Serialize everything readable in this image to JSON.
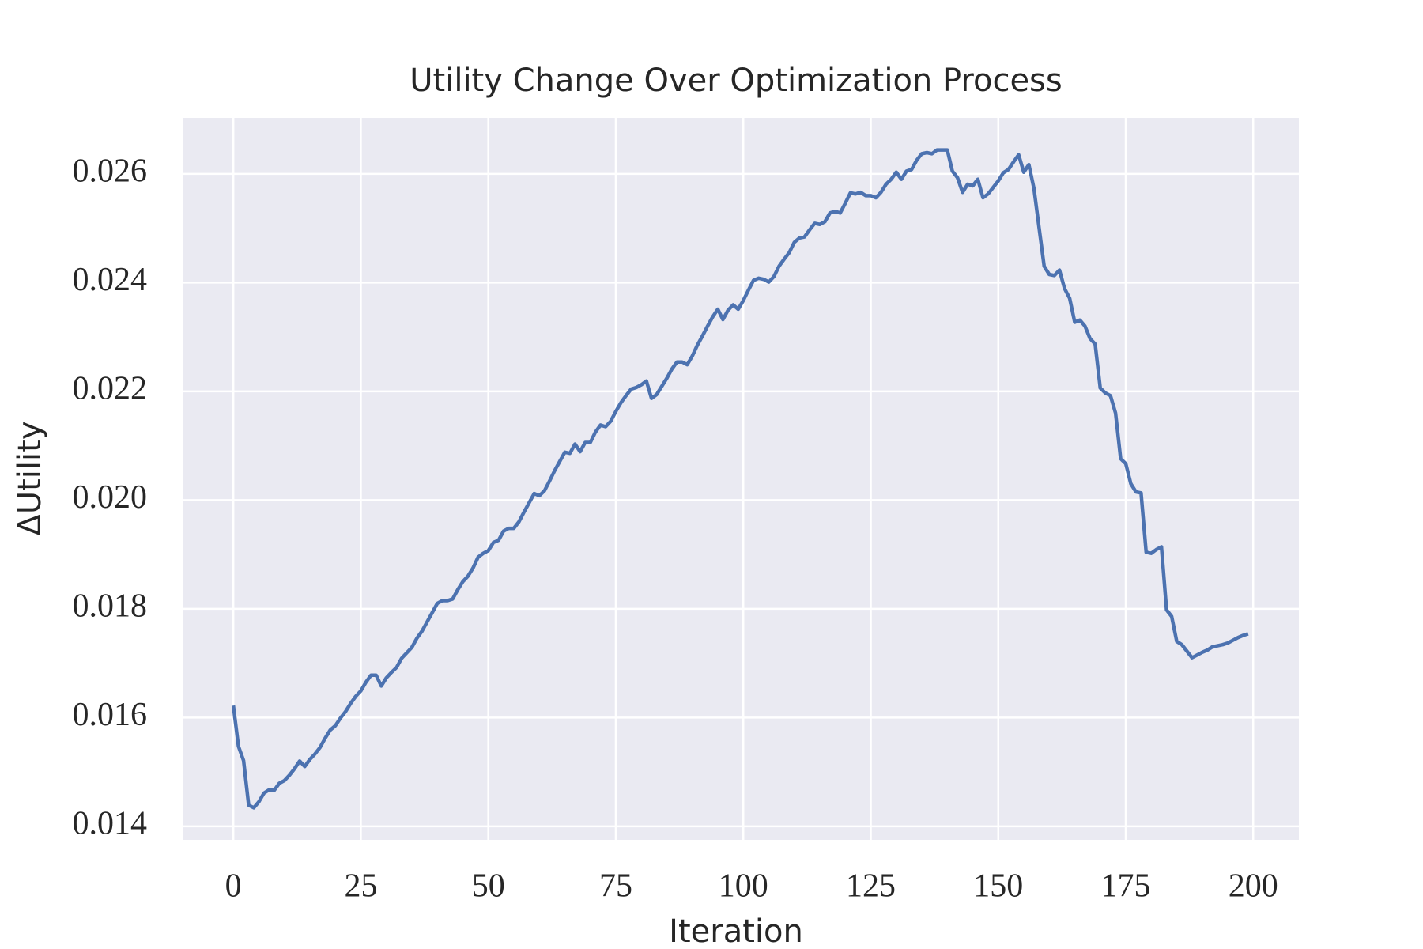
{
  "chart_data": {
    "type": "line",
    "title": "Utility Change Over Optimization Process",
    "x_label": "Iteration",
    "y_label": "ΔUtility",
    "x": [
      0,
      1,
      2,
      3,
      4,
      5,
      6,
      7,
      8,
      9,
      10,
      11,
      12,
      13,
      14,
      15,
      16,
      17,
      18,
      19,
      20,
      21,
      22,
      23,
      24,
      25,
      26,
      27,
      28,
      29,
      30,
      31,
      32,
      33,
      34,
      35,
      36,
      37,
      38,
      39,
      40,
      41,
      42,
      43,
      44,
      45,
      46,
      47,
      48,
      49,
      50,
      51,
      52,
      53,
      54,
      55,
      56,
      57,
      58,
      59,
      60,
      61,
      62,
      63,
      64,
      65,
      66,
      67,
      68,
      69,
      70,
      71,
      72,
      73,
      74,
      75,
      76,
      77,
      78,
      79,
      80,
      81,
      82,
      83,
      84,
      85,
      86,
      87,
      88,
      89,
      90,
      91,
      92,
      93,
      94,
      95,
      96,
      97,
      98,
      99,
      100,
      101,
      102,
      103,
      104,
      105,
      106,
      107,
      108,
      109,
      110,
      111,
      112,
      113,
      114,
      115,
      116,
      117,
      118,
      119,
      120,
      121,
      122,
      123,
      124,
      125,
      126,
      127,
      128,
      129,
      130,
      131,
      132,
      133,
      134,
      135,
      136,
      137,
      138,
      139,
      140,
      141,
      142,
      143,
      144,
      145,
      146,
      147,
      148,
      149,
      150,
      151,
      152,
      153,
      154,
      155,
      156,
      157,
      158,
      159,
      160,
      161,
      162,
      163,
      164,
      165,
      166,
      167,
      168,
      169,
      170,
      171,
      172,
      173,
      174,
      175,
      176,
      177,
      178,
      179,
      180,
      181,
      182,
      183,
      184,
      185,
      186,
      187,
      188,
      189,
      190,
      191,
      192,
      193,
      194,
      195,
      196,
      197,
      198,
      199
    ],
    "series": [
      {
        "color": "#4c72b0",
        "values": [
          0.01622,
          0.01547,
          0.01521,
          0.01439,
          0.01434,
          0.01445,
          0.01461,
          0.01467,
          0.01466,
          0.01479,
          0.01484,
          0.01494,
          0.01506,
          0.0152,
          0.0151,
          0.01523,
          0.01533,
          0.01545,
          0.01562,
          0.01577,
          0.01585,
          0.01599,
          0.01611,
          0.01626,
          0.01639,
          0.01649,
          0.01665,
          0.01678,
          0.01678,
          0.01658,
          0.01673,
          0.01683,
          0.01692,
          0.01709,
          0.01719,
          0.01729,
          0.01746,
          0.01759,
          0.01776,
          0.01793,
          0.0181,
          0.01815,
          0.01815,
          0.01818,
          0.01835,
          0.0185,
          0.0186,
          0.01875,
          0.01895,
          0.01902,
          0.01907,
          0.01922,
          0.01926,
          0.01943,
          0.01948,
          0.01948,
          0.0196,
          0.01978,
          0.01995,
          0.02012,
          0.02008,
          0.02017,
          0.02035,
          0.02054,
          0.02071,
          0.02088,
          0.02086,
          0.02103,
          0.02089,
          0.02106,
          0.02106,
          0.02125,
          0.02138,
          0.02135,
          0.02145,
          0.02163,
          0.02179,
          0.02192,
          0.02204,
          0.02207,
          0.02212,
          0.02219,
          0.02187,
          0.02194,
          0.02209,
          0.02224,
          0.02241,
          0.02254,
          0.02254,
          0.02249,
          0.02265,
          0.02285,
          0.02302,
          0.0232,
          0.02337,
          0.02351,
          0.02332,
          0.02349,
          0.02359,
          0.02351,
          0.02367,
          0.02386,
          0.02404,
          0.02408,
          0.02406,
          0.02401,
          0.02411,
          0.0243,
          0.02443,
          0.02455,
          0.02474,
          0.02482,
          0.02484,
          0.02497,
          0.02509,
          0.02507,
          0.02512,
          0.02528,
          0.02531,
          0.02528,
          0.02546,
          0.02565,
          0.02563,
          0.02566,
          0.0256,
          0.0256,
          0.02556,
          0.02566,
          0.02581,
          0.0259,
          0.02603,
          0.0259,
          0.02605,
          0.02608,
          0.02625,
          0.02637,
          0.02639,
          0.02637,
          0.02644,
          0.02644,
          0.02644,
          0.02605,
          0.02593,
          0.02566,
          0.02581,
          0.02578,
          0.0259,
          0.02556,
          0.02563,
          0.02575,
          0.02587,
          0.02602,
          0.02608,
          0.02622,
          0.02635,
          0.02603,
          0.02617,
          0.02573,
          0.02501,
          0.0243,
          0.02415,
          0.02413,
          0.02423,
          0.02389,
          0.02371,
          0.02327,
          0.02331,
          0.0232,
          0.02297,
          0.02287,
          0.02206,
          0.02197,
          0.02192,
          0.0216,
          0.02076,
          0.02067,
          0.0203,
          0.02015,
          0.02013,
          0.01904,
          0.01902,
          0.01909,
          0.01914,
          0.01798,
          0.01786,
          0.0174,
          0.01734,
          0.01722,
          0.0171,
          0.01715,
          0.0172,
          0.01724,
          0.0173,
          0.01732,
          0.01734,
          0.01737,
          0.01742,
          0.01747,
          0.01751,
          0.01754
        ]
      }
    ],
    "xlim": [
      -9.95,
      208.95
    ],
    "ylim": [
      0.01375,
      0.02703
    ],
    "xticks": [
      0,
      25,
      50,
      75,
      100,
      125,
      150,
      175,
      200
    ],
    "yticks": [
      0.014,
      0.016,
      0.018,
      {
        "value": 0.02,
        "label": "0.020"
      },
      0.022,
      0.024,
      0.026
    ],
    "grid": true
  }
}
